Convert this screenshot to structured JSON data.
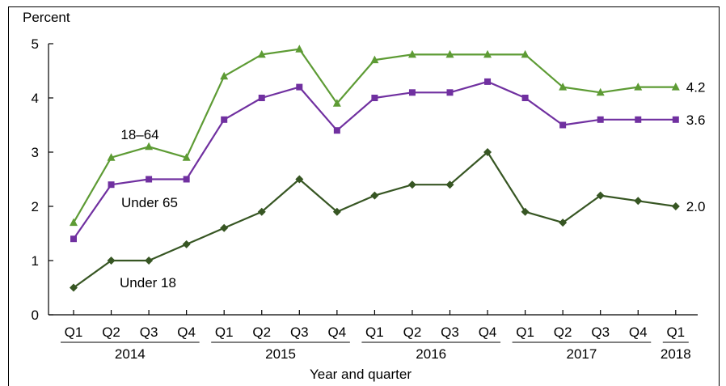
{
  "chart_data": {
    "type": "line",
    "ylabel": "Percent",
    "xlabel": "Year and quarter",
    "ylim": [
      0,
      5
    ],
    "yticks": [
      "0",
      "1",
      "2",
      "3",
      "4",
      "5"
    ],
    "quarters": [
      "Q1",
      "Q2",
      "Q3",
      "Q4",
      "Q1",
      "Q2",
      "Q3",
      "Q4",
      "Q1",
      "Q2",
      "Q3",
      "Q4",
      "Q1",
      "Q2",
      "Q3",
      "Q4",
      "Q1"
    ],
    "year_groups": [
      {
        "label": "2014",
        "start": 0,
        "end": 3
      },
      {
        "label": "2015",
        "start": 4,
        "end": 7
      },
      {
        "label": "2016",
        "start": 8,
        "end": 11
      },
      {
        "label": "2017",
        "start": 12,
        "end": 15
      },
      {
        "label": "2018",
        "start": 16,
        "end": 16
      }
    ],
    "series": [
      {
        "name": "18–64",
        "color": "#5d9b34",
        "marker": "triangle",
        "values": [
          1.7,
          2.9,
          3.1,
          2.9,
          4.4,
          4.8,
          4.9,
          3.9,
          4.7,
          4.8,
          4.8,
          4.8,
          4.8,
          4.2,
          4.1,
          4.2,
          4.2
        ],
        "end_label": "4.2"
      },
      {
        "name": "Under 65",
        "color": "#7030a0",
        "marker": "square",
        "values": [
          1.4,
          2.4,
          2.5,
          2.5,
          3.6,
          4.0,
          4.2,
          3.4,
          4.0,
          4.1,
          4.1,
          4.3,
          4.0,
          3.5,
          3.6,
          3.6,
          3.6
        ],
        "end_label": "3.6"
      },
      {
        "name": "Under 18",
        "color": "#375623",
        "marker": "diamond",
        "values": [
          0.5,
          1.0,
          1.0,
          1.3,
          1.6,
          1.9,
          2.5,
          1.9,
          2.2,
          2.4,
          2.4,
          3.0,
          1.9,
          1.7,
          2.2,
          2.1,
          2.0
        ],
        "end_label": "2.0"
      }
    ]
  }
}
